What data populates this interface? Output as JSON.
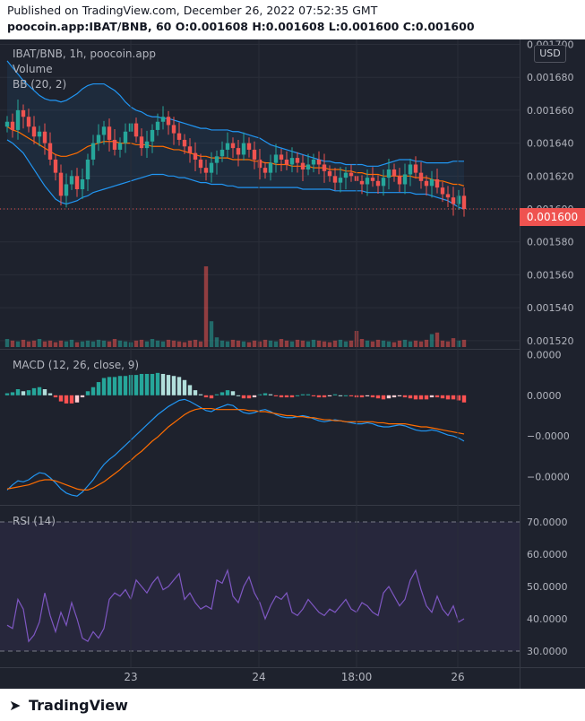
{
  "header": {
    "published_line": "Published on TradingView.com, December 26, 2022 07:52:35 GMT",
    "symbol_line": "poocoin.app:IBAT/BNB, 60 O:0.001608 H:0.001608 L:0.001600 C:0.001600"
  },
  "legend": {
    "symbol": "IBAT/BNB, 1h, poocoin.app",
    "volume": "Volume",
    "bb": "BB (20, 2)",
    "macd": "MACD (12, 26, close, 9)",
    "rsi": "RSI (14)"
  },
  "currency_button": "USD",
  "last_price_label": "0.001600",
  "brand": "TradingView",
  "colors": {
    "up": "#26a69a",
    "down": "#ef5350",
    "bb": "#2196f3",
    "bb_basis": "#ff6d00",
    "macd_line": "#2196f3",
    "signal_line": "#ff6d00",
    "rsi_line": "#7e57c2",
    "background": "#1e222d"
  },
  "chart_data": [
    {
      "type": "candlestick",
      "title": "IBAT/BNB, 1h, poocoin.app",
      "y_ticks": [
        "0.001700",
        "0.001680",
        "0.001660",
        "0.001640",
        "0.001620",
        "0.001600",
        "0.001580",
        "0.001560",
        "0.001540",
        "0.001520"
      ],
      "y_tick_values": [
        0.0017,
        0.00168,
        0.00166,
        0.00164,
        0.00162,
        0.0016,
        0.00158,
        0.00156,
        0.00154,
        0.00152
      ],
      "ylim": [
        0.001515,
        0.001703
      ],
      "x_ticks": [
        "23",
        "24",
        "18:00",
        "26"
      ],
      "last_close": 0.0016,
      "close": [
        0.001653,
        0.001648,
        0.00166,
        0.001656,
        0.00165,
        0.001644,
        0.001647,
        0.00164,
        0.00163,
        0.001622,
        0.001608,
        0.001615,
        0.00162,
        0.001612,
        0.001618,
        0.00163,
        0.00164,
        0.001645,
        0.00165,
        0.001642,
        0.001636,
        0.00164,
        0.001647,
        0.001652,
        0.001644,
        0.001637,
        0.001641,
        0.001648,
        0.001653,
        0.001656,
        0.001651,
        0.001646,
        0.001642,
        0.001638,
        0.001634,
        0.00163,
        0.001625,
        0.001622,
        0.001628,
        0.001632,
        0.001636,
        0.00164,
        0.001637,
        0.001633,
        0.00164,
        0.001636,
        0.00163,
        0.001625,
        0.001622,
        0.001628,
        0.001633,
        0.00163,
        0.001627,
        0.001631,
        0.001628,
        0.001624,
        0.001627,
        0.00163,
        0.001627,
        0.001623,
        0.00162,
        0.001616,
        0.001619,
        0.001622,
        0.00162,
        0.001617,
        0.001615,
        0.001619,
        0.001617,
        0.001614,
        0.001619,
        0.001624,
        0.00162,
        0.001615,
        0.001621,
        0.001627,
        0.001622,
        0.001617,
        0.001614,
        0.001618,
        0.001613,
        0.001609,
        0.001607,
        0.001603,
        0.001608,
        0.0016
      ],
      "bb_upper": [
        0.00169,
        0.001686,
        0.001682,
        0.001678,
        0.001675,
        0.001672,
        0.001669,
        0.001667,
        0.001666,
        0.001666,
        0.001665,
        0.001666,
        0.001668,
        0.00167,
        0.001673,
        0.001675,
        0.001676,
        0.001676,
        0.001676,
        0.001674,
        0.001672,
        0.001669,
        0.001665,
        0.001662,
        0.00166,
        0.001659,
        0.001657,
        0.001656,
        0.001656,
        0.001655,
        0.001655,
        0.001654,
        0.001653,
        0.001652,
        0.001651,
        0.00165,
        0.001649,
        0.001649,
        0.001648,
        0.001648,
        0.001648,
        0.001648,
        0.001647,
        0.001647,
        0.001646,
        0.001645,
        0.001644,
        0.001643,
        0.001641,
        0.001639,
        0.001638,
        0.001637,
        0.001636,
        0.001635,
        0.001634,
        0.001633,
        0.001632,
        0.001631,
        0.00163,
        0.001629,
        0.001629,
        0.001628,
        0.001628,
        0.001627,
        0.001627,
        0.001627,
        0.001627,
        0.001626,
        0.001626,
        0.001626,
        0.001627,
        0.001628,
        0.001629,
        0.00163,
        0.00163,
        0.00163,
        0.001629,
        0.001629,
        0.001628,
        0.001628,
        0.001628,
        0.001628,
        0.001628,
        0.001629,
        0.001629,
        0.001629
      ],
      "bb_basis": [
        0.00165,
        0.001648,
        0.001647,
        0.001645,
        0.001643,
        0.001641,
        0.001639,
        0.001637,
        0.001635,
        0.001633,
        0.001632,
        0.001632,
        0.001633,
        0.001634,
        0.001636,
        0.001638,
        0.001639,
        0.00164,
        0.001641,
        0.001641,
        0.001641,
        0.00164,
        0.00164,
        0.00164,
        0.001639,
        0.001639,
        0.001639,
        0.001638,
        0.001638,
        0.001638,
        0.001637,
        0.001636,
        0.001636,
        0.001635,
        0.001634,
        0.001633,
        0.001632,
        0.001632,
        0.001631,
        0.001631,
        0.001631,
        0.001631,
        0.00163,
        0.00163,
        0.00163,
        0.00163,
        0.001629,
        0.001629,
        0.001628,
        0.001628,
        0.001627,
        0.001627,
        0.001627,
        0.001626,
        0.001626,
        0.001626,
        0.001626,
        0.001625,
        0.001625,
        0.001625,
        0.001624,
        0.001624,
        0.001624,
        0.001623,
        0.001623,
        0.001622,
        0.001622,
        0.001621,
        0.001621,
        0.001621,
        0.00162,
        0.00162,
        0.00162,
        0.00162,
        0.00162,
        0.00162,
        0.001619,
        0.001619,
        0.001619,
        0.001618,
        0.001617,
        0.001617,
        0.001616,
        0.001615,
        0.001615,
        0.001614
      ],
      "bb_lower": [
        0.001642,
        0.00164,
        0.001637,
        0.001634,
        0.001629,
        0.001624,
        0.001619,
        0.001614,
        0.00161,
        0.001606,
        0.001604,
        0.001603,
        0.001604,
        0.001605,
        0.001607,
        0.001608,
        0.00161,
        0.001611,
        0.001612,
        0.001613,
        0.001614,
        0.001615,
        0.001616,
        0.001617,
        0.001618,
        0.001619,
        0.00162,
        0.001621,
        0.001621,
        0.001621,
        0.00162,
        0.00162,
        0.001619,
        0.001619,
        0.001618,
        0.001617,
        0.001616,
        0.001616,
        0.001615,
        0.001615,
        0.001615,
        0.001614,
        0.001614,
        0.001613,
        0.001613,
        0.001613,
        0.001613,
        0.001613,
        0.001613,
        0.001613,
        0.001613,
        0.001613,
        0.001613,
        0.001613,
        0.001613,
        0.001612,
        0.001612,
        0.001612,
        0.001612,
        0.001612,
        0.001612,
        0.001611,
        0.001611,
        0.001611,
        0.001611,
        0.001611,
        0.001611,
        0.00161,
        0.00161,
        0.00161,
        0.00161,
        0.00161,
        0.00161,
        0.00161,
        0.00161,
        0.00161,
        0.001609,
        0.001609,
        0.001609,
        0.001608,
        0.001607,
        0.001606,
        0.001605,
        0.001603,
        0.001601,
        0.0016
      ],
      "volume_ylim": [
        0,
        1
      ],
      "volume": [
        0.1,
        0.08,
        0.07,
        0.09,
        0.07,
        0.08,
        0.1,
        0.07,
        0.08,
        0.06,
        0.08,
        0.07,
        0.09,
        0.06,
        0.07,
        0.08,
        0.07,
        0.09,
        0.08,
        0.07,
        0.1,
        0.08,
        0.07,
        0.06,
        0.08,
        0.09,
        0.07,
        0.1,
        0.08,
        0.07,
        0.09,
        0.08,
        0.07,
        0.06,
        0.08,
        0.09,
        0.07,
        1.0,
        0.32,
        0.12,
        0.08,
        0.07,
        0.09,
        0.08,
        0.07,
        0.06,
        0.08,
        0.07,
        0.09,
        0.08,
        0.07,
        0.1,
        0.08,
        0.07,
        0.09,
        0.08,
        0.07,
        0.09,
        0.08,
        0.07,
        0.06,
        0.08,
        0.09,
        0.07,
        0.08,
        0.2,
        0.1,
        0.08,
        0.07,
        0.09,
        0.08,
        0.07,
        0.06,
        0.08,
        0.09,
        0.07,
        0.08,
        0.07,
        0.09,
        0.16,
        0.18,
        0.08,
        0.07,
        0.11,
        0.08,
        0.09
      ]
    },
    {
      "type": "line",
      "title": "MACD (12, 26, close, 9)",
      "y_ticks": [
        "0.0000",
        "0.0000",
        "−0.0000",
        "−0.0000"
      ],
      "y_tick_values": [
        4e-06,
        0.0,
        -4e-06,
        -8e-06
      ],
      "ylim": [
        -1.05e-05,
        4.3e-06
      ],
      "series": [
        {
          "role": "macd",
          "values": [
            -9.3e-06,
            -8.8e-06,
            -8.4e-06,
            -8.5e-06,
            -8.3e-06,
            -7.9e-06,
            -7.6e-06,
            -7.7e-06,
            -8.1e-06,
            -8.6e-06,
            -9.2e-06,
            -9.6e-06,
            -9.8e-06,
            -9.9e-06,
            -9.5e-06,
            -8.9e-06,
            -8.3e-06,
            -7.5e-06,
            -6.8e-06,
            -6.3e-06,
            -5.9e-06,
            -5.4e-06,
            -4.9e-06,
            -4.4e-06,
            -3.9e-06,
            -3.4e-06,
            -2.9e-06,
            -2.4e-06,
            -1.9e-06,
            -1.5e-06,
            -1.1e-06,
            -8e-07,
            -5e-07,
            -4e-07,
            -6e-07,
            -9e-07,
            -1.2e-06,
            -1.5e-06,
            -1.6e-06,
            -1.3e-06,
            -1.1e-06,
            -9e-07,
            -1e-06,
            -1.4e-06,
            -1.7e-06,
            -1.8e-06,
            -1.7e-06,
            -1.5e-06,
            -1.4e-06,
            -1.6e-06,
            -1.9e-06,
            -2.1e-06,
            -2.2e-06,
            -2.2e-06,
            -2.1e-06,
            -2e-06,
            -2.1e-06,
            -2.3e-06,
            -2.5e-06,
            -2.6e-06,
            -2.5e-06,
            -2.4e-06,
            -2.5e-06,
            -2.6e-06,
            -2.7e-06,
            -2.8e-06,
            -2.8e-06,
            -2.7e-06,
            -2.8e-06,
            -3e-06,
            -3.1e-06,
            -3.1e-06,
            -3e-06,
            -2.9e-06,
            -3e-06,
            -3.2e-06,
            -3.4e-06,
            -3.5e-06,
            -3.5e-06,
            -3.4e-06,
            -3.5e-06,
            -3.7e-06,
            -3.9e-06,
            -4e-06,
            -4.2e-06,
            -4.5e-06
          ]
        },
        {
          "role": "signal",
          "values": [
            -9.2e-06,
            -9.1e-06,
            -9e-06,
            -8.9e-06,
            -8.8e-06,
            -8.6e-06,
            -8.4e-06,
            -8.3e-06,
            -8.3e-06,
            -8.4e-06,
            -8.6e-06,
            -8.8e-06,
            -9e-06,
            -9.2e-06,
            -9.3e-06,
            -9.3e-06,
            -9.1e-06,
            -8.8e-06,
            -8.5e-06,
            -8.1e-06,
            -7.7e-06,
            -7.3e-06,
            -6.8e-06,
            -6.4e-06,
            -5.9e-06,
            -5.5e-06,
            -5e-06,
            -4.5e-06,
            -4.1e-06,
            -3.6e-06,
            -3.1e-06,
            -2.7e-06,
            -2.3e-06,
            -1.9e-06,
            -1.6e-06,
            -1.4e-06,
            -1.3e-06,
            -1.3e-06,
            -1.3e-06,
            -1.4e-06,
            -1.4e-06,
            -1.4e-06,
            -1.4e-06,
            -1.4e-06,
            -1.4e-06,
            -1.5e-06,
            -1.5e-06,
            -1.6e-06,
            -1.6e-06,
            -1.7e-06,
            -1.8e-06,
            -1.9e-06,
            -2e-06,
            -2e-06,
            -2.1e-06,
            -2.1e-06,
            -2.2e-06,
            -2.2e-06,
            -2.3e-06,
            -2.4e-06,
            -2.4e-06,
            -2.5e-06,
            -2.5e-06,
            -2.6e-06,
            -2.6e-06,
            -2.6e-06,
            -2.6e-06,
            -2.6e-06,
            -2.6e-06,
            -2.7e-06,
            -2.7e-06,
            -2.8e-06,
            -2.8e-06,
            -2.8e-06,
            -2.8e-06,
            -2.9e-06,
            -3e-06,
            -3.1e-06,
            -3.1e-06,
            -3.2e-06,
            -3.3e-06,
            -3.4e-06,
            -3.5e-06,
            -3.6e-06,
            -3.7e-06,
            -3.8e-06
          ]
        }
      ],
      "histogram": [
        2e-07,
        3e-07,
        6e-07,
        4e-07,
        5e-07,
        7e-07,
        8e-07,
        6e-07,
        2e-07,
        -2e-07,
        -6e-07,
        -8e-07,
        -8e-07,
        -7e-07,
        -2e-07,
        4e-07,
        8e-07,
        1.3e-06,
        1.7e-06,
        1.8e-06,
        1.8e-06,
        1.9e-06,
        1.9e-06,
        2e-06,
        2e-06,
        2.1e-06,
        2.1e-06,
        2.1e-06,
        2.2e-06,
        2.1e-06,
        2e-06,
        1.9e-06,
        1.8e-06,
        1.5e-06,
        1e-06,
        5e-07,
        1e-07,
        -2e-07,
        -3e-07,
        1e-07,
        3e-07,
        5e-07,
        4e-07,
        0.0,
        -3e-07,
        -3e-07,
        -2e-07,
        1e-07,
        2e-07,
        1e-07,
        -1e-07,
        -2e-07,
        -2e-07,
        -2e-07,
        0.0,
        1e-07,
        1e-07,
        -1e-07,
        -2e-07,
        -2e-07,
        -1e-07,
        1e-07,
        0.0,
        0.0,
        -1e-07,
        -2e-07,
        -2e-07,
        -1e-07,
        -2e-07,
        -3e-07,
        -4e-07,
        -3e-07,
        -2e-07,
        -1e-07,
        -2e-07,
        -3e-07,
        -4e-07,
        -4e-07,
        -4e-07,
        -2e-07,
        -2e-07,
        -3e-07,
        -4e-07,
        -4e-07,
        -5e-07,
        -7e-07
      ]
    },
    {
      "type": "line",
      "title": "RSI (14)",
      "y_ticks": [
        "70.0000",
        "60.0000",
        "50.0000",
        "40.0000",
        "30.0000"
      ],
      "y_tick_values": [
        70,
        60,
        50,
        40,
        30
      ],
      "ylim": [
        25,
        75
      ],
      "band": [
        30,
        70
      ],
      "values": [
        38,
        37,
        46,
        43,
        33,
        35,
        39,
        48,
        41,
        36,
        42,
        38,
        45,
        40,
        34,
        33,
        36,
        34,
        37,
        46,
        48,
        47,
        49,
        46,
        52,
        50,
        48,
        51,
        53,
        49,
        50,
        52,
        54,
        46,
        48,
        45,
        43,
        44,
        43,
        52,
        51,
        55,
        47,
        45,
        50,
        53,
        48,
        45,
        40,
        44,
        47,
        46,
        48,
        42,
        41,
        43,
        46,
        44,
        42,
        41,
        43,
        42,
        44,
        46,
        43,
        42,
        45,
        44,
        42,
        41,
        48,
        50,
        47,
        44,
        46,
        52,
        55,
        49,
        44,
        42,
        47,
        43,
        41,
        44,
        39,
        40
      ]
    }
  ]
}
